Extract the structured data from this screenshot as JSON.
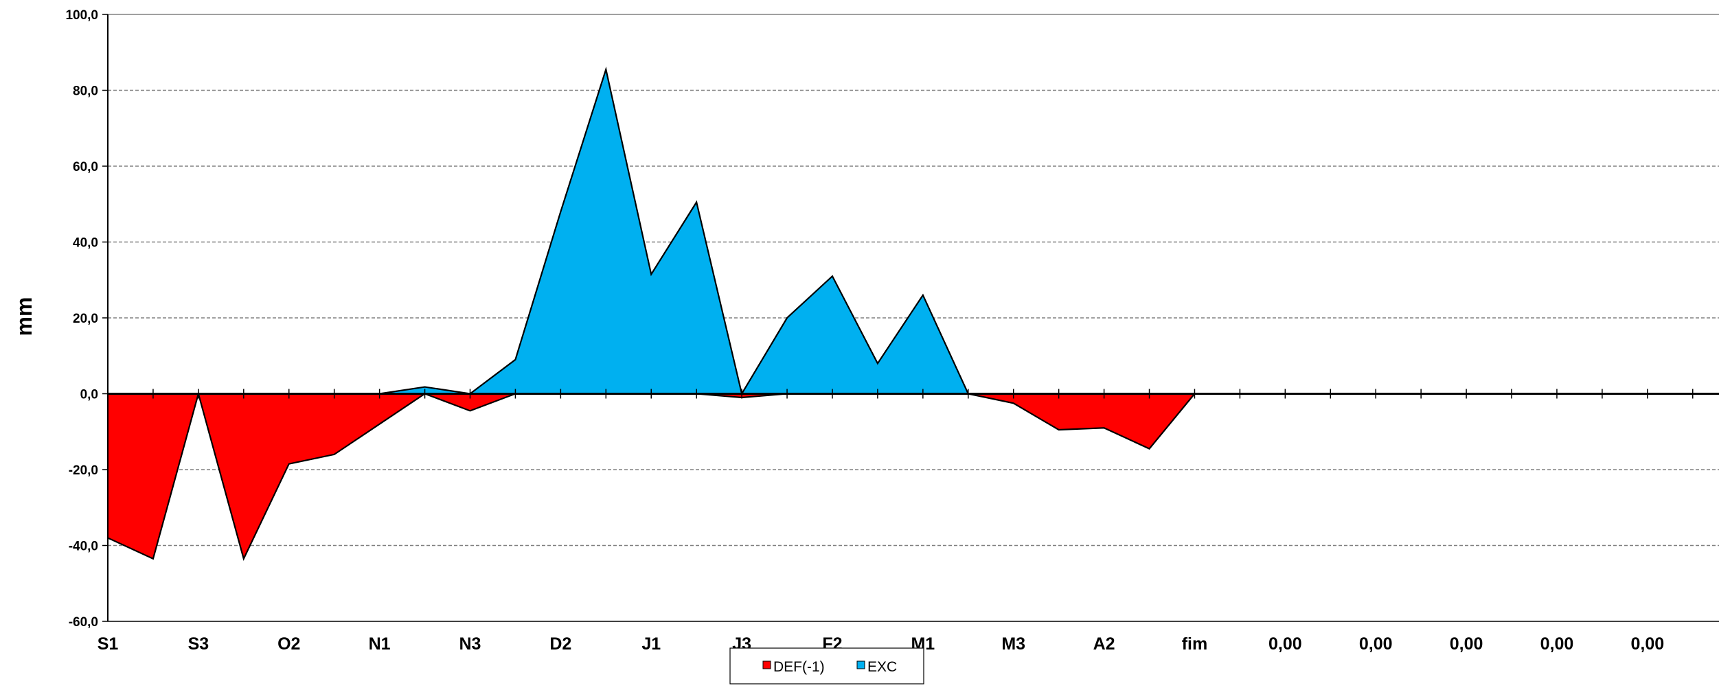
{
  "chart_data": {
    "type": "area",
    "title": "",
    "xlabel": "",
    "ylabel": "mm",
    "ylim": [
      -60,
      100
    ],
    "yticks": [
      -60,
      -40,
      -20,
      0,
      20,
      40,
      60,
      80,
      100
    ],
    "ytick_labels": [
      "-60,0",
      "-40,0",
      "-20,0",
      "0,0",
      "20,0",
      "40,0",
      "60,0",
      "80,0",
      "100,0"
    ],
    "grid": "horizontal-dashed",
    "categories": [
      "S1",
      "",
      "S3",
      "",
      "O2",
      "",
      "N1",
      "",
      "N3",
      "",
      "D2",
      "",
      "J1",
      "",
      "J3",
      "",
      "F2",
      "",
      "M1",
      "",
      "M3",
      "",
      "A2",
      "",
      "fim",
      "",
      "0,00",
      "",
      "0,00",
      "",
      "0,00",
      "",
      "0,00",
      "",
      "0,00",
      ""
    ],
    "series": [
      {
        "name": "DEF(-1)",
        "color": "#ff0000",
        "values": [
          -38,
          -43.5,
          0,
          -43.5,
          -18.5,
          -16,
          -8,
          0,
          -4.5,
          0,
          0,
          0,
          0,
          0,
          -1,
          0,
          0,
          0,
          0,
          0,
          -2.5,
          -9.5,
          -9,
          -14.5,
          0,
          0,
          0,
          0,
          0,
          0,
          0,
          0,
          0,
          0,
          0,
          0
        ]
      },
      {
        "name": "EXC",
        "color": "#00b0f0",
        "values": [
          0,
          0,
          0,
          0,
          0,
          0,
          0,
          1.8,
          0,
          9,
          48,
          85.5,
          31.5,
          50.5,
          0,
          20,
          31,
          8,
          26,
          0,
          0,
          0,
          0,
          0,
          0,
          0,
          0,
          0,
          0,
          0,
          0,
          0,
          0,
          0,
          0,
          0
        ]
      }
    ],
    "legend": {
      "placement": "bottom-center"
    }
  }
}
